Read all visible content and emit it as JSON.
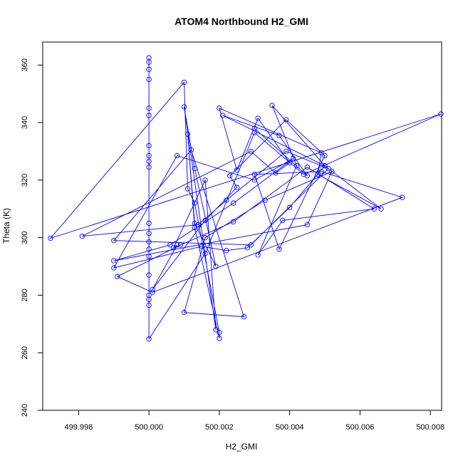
{
  "chart_data": {
    "type": "line",
    "title": "ATOM4 Northbound H2_GMI",
    "xlabel": "H2_GMI",
    "ylabel": "Theta (K)",
    "xlim": [
      499.99698,
      500.00832
    ],
    "ylim": [
      240,
      368
    ],
    "x_ticks": [
      499.998,
      500.0,
      500.002,
      500.004,
      500.006,
      500.008
    ],
    "x_tick_labels": [
      "499.998",
      "500.000",
      "500.002",
      "500.004",
      "500.006",
      "500.008"
    ],
    "y_ticks": [
      240,
      260,
      280,
      300,
      320,
      340,
      360
    ],
    "y_tick_labels": [
      "240",
      "260",
      "280",
      "300",
      "320",
      "340",
      "360"
    ],
    "grid": false,
    "marker": "open-circle",
    "series": [
      {
        "color": "#0000ff",
        "points": [
          [
            500.0,
            362.5
          ],
          [
            500.0,
            361.0
          ],
          [
            500.0,
            358.5
          ],
          [
            500.0,
            355.0
          ],
          [
            500.0,
            345.0
          ],
          [
            500.0,
            342.5
          ],
          [
            500.0,
            332.0
          ],
          [
            500.0,
            328.5
          ],
          [
            500.0,
            326.5
          ],
          [
            500.0,
            324.5
          ],
          [
            500.0,
            305.0
          ],
          [
            500.0,
            301.5
          ],
          [
            500.0,
            298.5
          ],
          [
            500.0,
            296.0
          ],
          [
            500.0,
            293.5
          ],
          [
            500.0,
            287.0
          ],
          [
            500.0,
            280.0
          ],
          [
            500.0,
            278.5
          ],
          [
            500.0,
            276.5
          ],
          [
            500.0,
            264.8
          ],
          [
            500.0016,
            294.5
          ],
          [
            500.003,
            336.5
          ],
          [
            500.0044,
            322.0
          ],
          [
            500.0083,
            343.0
          ],
          [
            499.9972,
            299.8
          ],
          [
            500.001,
            354.0
          ],
          [
            500.0011,
            317.0
          ],
          [
            500.0013,
            312.0
          ],
          [
            500.002,
            267.0
          ],
          [
            500.002,
            265.0
          ],
          [
            500.0013,
            303.5
          ],
          [
            500.0011,
            336.0
          ],
          [
            500.0013,
            305.0
          ],
          [
            500.0019,
            290.0
          ],
          [
            500.0013,
            324.0
          ],
          [
            500.001,
            345.5
          ],
          [
            500.0019,
            268.0
          ],
          [
            500.0016,
            320.0
          ],
          [
            500.0007,
            296.5
          ],
          [
            500.0008,
            297.5
          ],
          [
            500.0001,
            282.0
          ],
          [
            500.0016,
            306.0
          ],
          [
            500.0025,
            317.5
          ],
          [
            500.0023,
            321.5
          ],
          [
            500.0039,
            341.0
          ],
          [
            500.005,
            328.5
          ],
          [
            500.0037,
            296.0
          ],
          [
            500.003,
            322.0
          ],
          [
            500.0049,
            323.0
          ],
          [
            500.0072,
            314.0
          ],
          [
            500.0001,
            281.0
          ],
          [
            499.9991,
            286.5
          ],
          [
            500.0009,
            297.5
          ],
          [
            500.0024,
            305.5
          ],
          [
            500.0045,
            324.5
          ],
          [
            500.0064,
            310.0
          ],
          [
            500.0038,
            306.0
          ],
          [
            500.0031,
            294.0
          ],
          [
            500.0042,
            325.0
          ],
          [
            500.0035,
            346.0
          ],
          [
            500.005,
            325.0
          ],
          [
            500.0066,
            310.0
          ],
          [
            500.0048,
            322.0
          ],
          [
            500.0049,
            329.5
          ],
          [
            500.002,
            345.0
          ],
          [
            500.0025,
            323.5
          ],
          [
            500.0031,
            341.5
          ],
          [
            500.004,
            326.0
          ],
          [
            500.0036,
            322.5
          ],
          [
            500.0029,
            330.0
          ],
          [
            499.9981,
            300.5
          ],
          [
            500.0014,
            304.5
          ],
          [
            500.0022,
            313.0
          ],
          [
            500.0039,
            330.0
          ],
          [
            500.0051,
            324.0
          ],
          [
            500.0029,
            297.5
          ],
          [
            499.999,
            299.0
          ],
          [
            500.0012,
            330.5
          ],
          [
            500.0027,
            272.5
          ],
          [
            500.001,
            274.0
          ],
          [
            500.0016,
            300.0
          ],
          [
            500.0033,
            313.0
          ],
          [
            500.0052,
            323.0
          ],
          [
            500.0045,
            304.5
          ],
          [
            499.999,
            292.0
          ],
          [
            500.0006,
            297.5
          ],
          [
            500.0024,
            312.0
          ],
          [
            500.0041,
            327.5
          ],
          [
            500.003,
            320.0
          ],
          [
            500.0008,
            328.5
          ],
          [
            499.999,
            289.5
          ],
          [
            500.0015,
            297.0
          ],
          [
            500.0022,
            295.5
          ],
          [
            500.0028,
            296.5
          ],
          [
            500.004,
            310.5
          ],
          [
            500.005,
            325.0
          ],
          [
            500.0021,
            342.5
          ],
          [
            500.0037,
            335.5
          ],
          [
            500.0045,
            321.5
          ],
          [
            500.003,
            338.0
          ]
        ]
      }
    ]
  }
}
